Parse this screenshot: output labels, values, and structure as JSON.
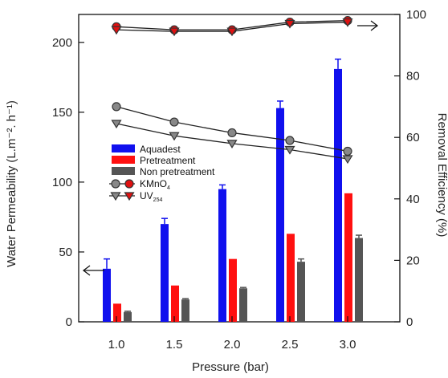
{
  "chart_data": {
    "type": "bar",
    "categories": [
      "1.0",
      "1.5",
      "2.0",
      "2.5",
      "3.0"
    ],
    "xlabel": "Pressure (bar)",
    "ylabel": "Water Permeability (L.m⁻². h⁻¹)",
    "y2label": "Removal Efficiency (%)",
    "ylim": [
      0,
      220
    ],
    "y2lim": [
      0,
      100
    ],
    "yticks": [
      0,
      50,
      100,
      150,
      200
    ],
    "y2ticks": [
      0,
      20,
      40,
      60,
      80,
      100
    ],
    "series": [
      {
        "name": "Aquadest",
        "kind": "bar",
        "axis": "left",
        "color": "#1010ee",
        "values": [
          38,
          70,
          95,
          153,
          181
        ],
        "errors": [
          7,
          4,
          3,
          5,
          7
        ]
      },
      {
        "name": "Pretreatment",
        "kind": "bar",
        "axis": "left",
        "color": "#ff1010",
        "values": [
          13,
          26,
          45,
          63,
          92
        ],
        "errors": [
          0,
          0,
          0,
          0,
          0
        ]
      },
      {
        "name": "Non pretreatment",
        "kind": "bar",
        "axis": "left",
        "color": "#555555",
        "values": [
          7,
          16,
          24,
          43,
          60
        ],
        "errors": [
          0.6,
          0.6,
          0.6,
          2,
          2
        ]
      },
      {
        "name": "KMnO",
        "name_sub": "4",
        "kind": "line",
        "axis": "right",
        "marker": "circle",
        "color": "#888888",
        "values": [
          70,
          65,
          61.5,
          59,
          55.5
        ]
      },
      {
        "name": "UV",
        "name_sub": "254",
        "kind": "line",
        "axis": "right",
        "marker": "triangle",
        "color": "#888888",
        "values": [
          64.5,
          60.5,
          58,
          56,
          53
        ]
      },
      {
        "name": "KMnO4 (pretreatment)",
        "kind": "line",
        "axis": "right",
        "marker": "circle",
        "color": "#e01010",
        "values": [
          96,
          95,
          95,
          97.5,
          98
        ]
      },
      {
        "name": "UV254 (pretreatment)",
        "kind": "line",
        "axis": "right",
        "marker": "triangle",
        "color": "#e01010",
        "values": [
          95,
          94.5,
          94.5,
          97,
          97.5
        ]
      }
    ],
    "legend_position": "center-left",
    "grid": false
  }
}
